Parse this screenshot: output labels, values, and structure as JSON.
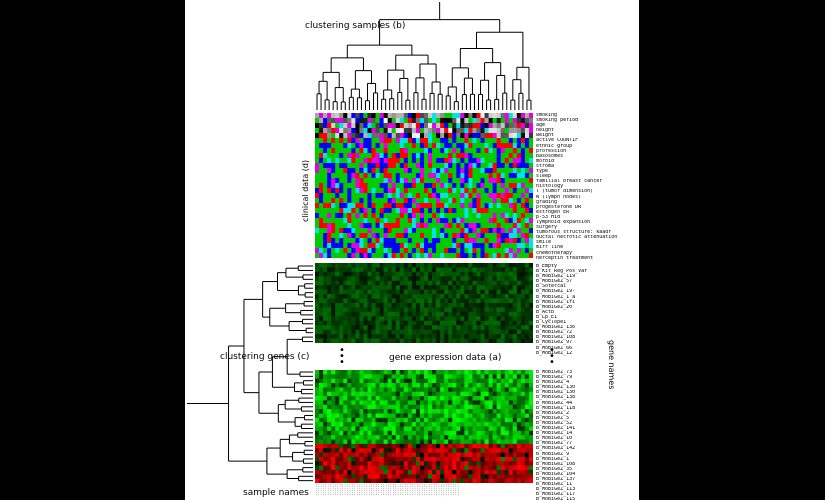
{
  "labels": {
    "clustering_samples": "clustering samples (b)",
    "clinical_data": "clinical data (d)",
    "clustering_genes": "clustering genes (c)",
    "gene_expression": "gene expression data (a)",
    "gene_names": "gene names",
    "sample_names": "sample names"
  },
  "clinical_vars": [
    "smoking",
    "smoking period",
    "age",
    "height",
    "weight",
    "active COUNTIF",
    "ethnic group",
    "profession",
    "Basosomes",
    "morbid",
    "stroma",
    "type",
    "sleep",
    "familial breast cancer",
    "histology",
    "T (tumor dimension)",
    "N (lymph nodes)",
    "grading",
    "progesterone DR",
    "estrogen ER",
    "p-53 Hid",
    "lymphoid expansion",
    "surgery",
    "tumorous structure: kaadr",
    "ductal necrotic attenuation",
    "smile",
    "mirr line",
    "chemotherapy",
    "herceptin treatment"
  ],
  "genes_top": [
    "B_Empty",
    "B_Kit_Reg_Pos_Var",
    "B_MoBiGeZ_119",
    "B_MoBiGeZ_57",
    "B_Sotercal",
    "B_MoBiGeZ_19-",
    "B_MoBiGeZ_1_a",
    "B_MoBiGeZ_1fi",
    "B_MoBiGeZ_20",
    "B_Actb",
    "B_Lp_E1",
    "B_Cyclope1",
    "B_MoBiGeZ_136",
    "B_MoBiGeZ_72",
    "B_MoBiGeZ_108",
    "B_MoBiGeZ_97",
    "B_MoBiGeZ_66",
    "B_MoBiGeZ_12"
  ],
  "genes_bottom": [
    "B_MoBiGeZ_73",
    "B_MoBiGeZ_79",
    "B_MoBiGeZ_4",
    "B_MoBiGeZ_130",
    "B_MoBiGeZ_130",
    "B_MoBiGeZ_138",
    "B_MoBiGeZ_44",
    "B_MoBiGeZ_118",
    "B_MoBiGeZ_2",
    "B_MoBiGeZ_5",
    "B_MoBiGeZ_52",
    "B_MoBiGeZ_141",
    "B_MoBiGeZ_14",
    "B_MoBiGeZ_10",
    "B_MoBiGeZ_77",
    "B_MoBiGeZ_142",
    "B_MoBiGeZ_9",
    "B_MoBiGeZ_1",
    "B_MoBiGeZ_108",
    "B_MoBiGeZ_35",
    "B_MoBiGeZ_104",
    "B_MoBiGeZ_137",
    "B_MoBiGeZ_11",
    "B_MoBiGeZ_113",
    "B_MoBiGeZ_117",
    "B_MoBiGeZ_115"
  ],
  "colors": {
    "clinical_palette": [
      "#ff0000",
      "#00cc00",
      "#0000ff",
      "#00e5e5",
      "#e500e5",
      "#000000",
      "#ffffff",
      "#888888",
      "#cccccc"
    ],
    "expr_green": "#00ff00",
    "expr_red": "#ff0000",
    "expr_black": "#000000"
  }
}
